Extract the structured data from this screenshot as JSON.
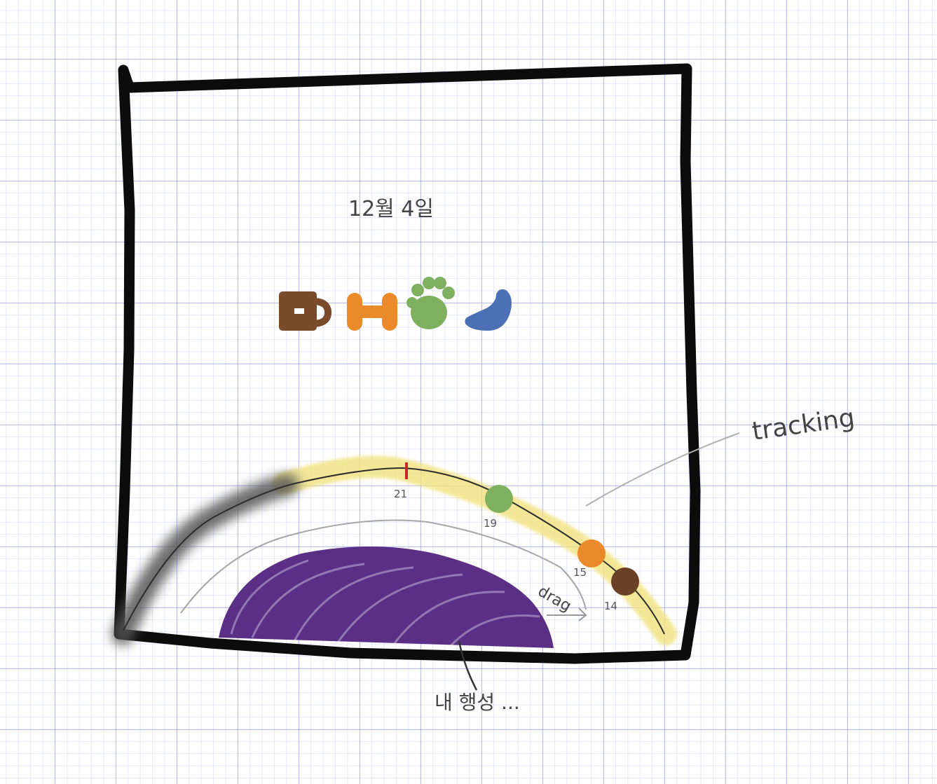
{
  "date_label": "12월 4일",
  "icons": [
    {
      "name": "mug-icon",
      "color": "#7b4a2b"
    },
    {
      "name": "dumbbell-icon",
      "color": "#ea8a2a"
    },
    {
      "name": "paw-icon",
      "color": "#7fb05f"
    },
    {
      "name": "bean-icon",
      "color": "#4b70b5"
    }
  ],
  "tracking_label": "tracking",
  "drag_label": "drag",
  "planet_label": "내 행성 ...",
  "arc_ticks": [
    {
      "label": "21",
      "color": "#c62828"
    },
    {
      "label": "19",
      "color": "#7fb05f"
    },
    {
      "label": "15",
      "color": "#ea8a2a"
    },
    {
      "label": "14",
      "color": "#6b4126"
    }
  ],
  "colors": {
    "frame": "#0c0c0c",
    "track_glow": "#f1e27e",
    "track_shadow": "#555555",
    "planet": "#5b2f86"
  }
}
